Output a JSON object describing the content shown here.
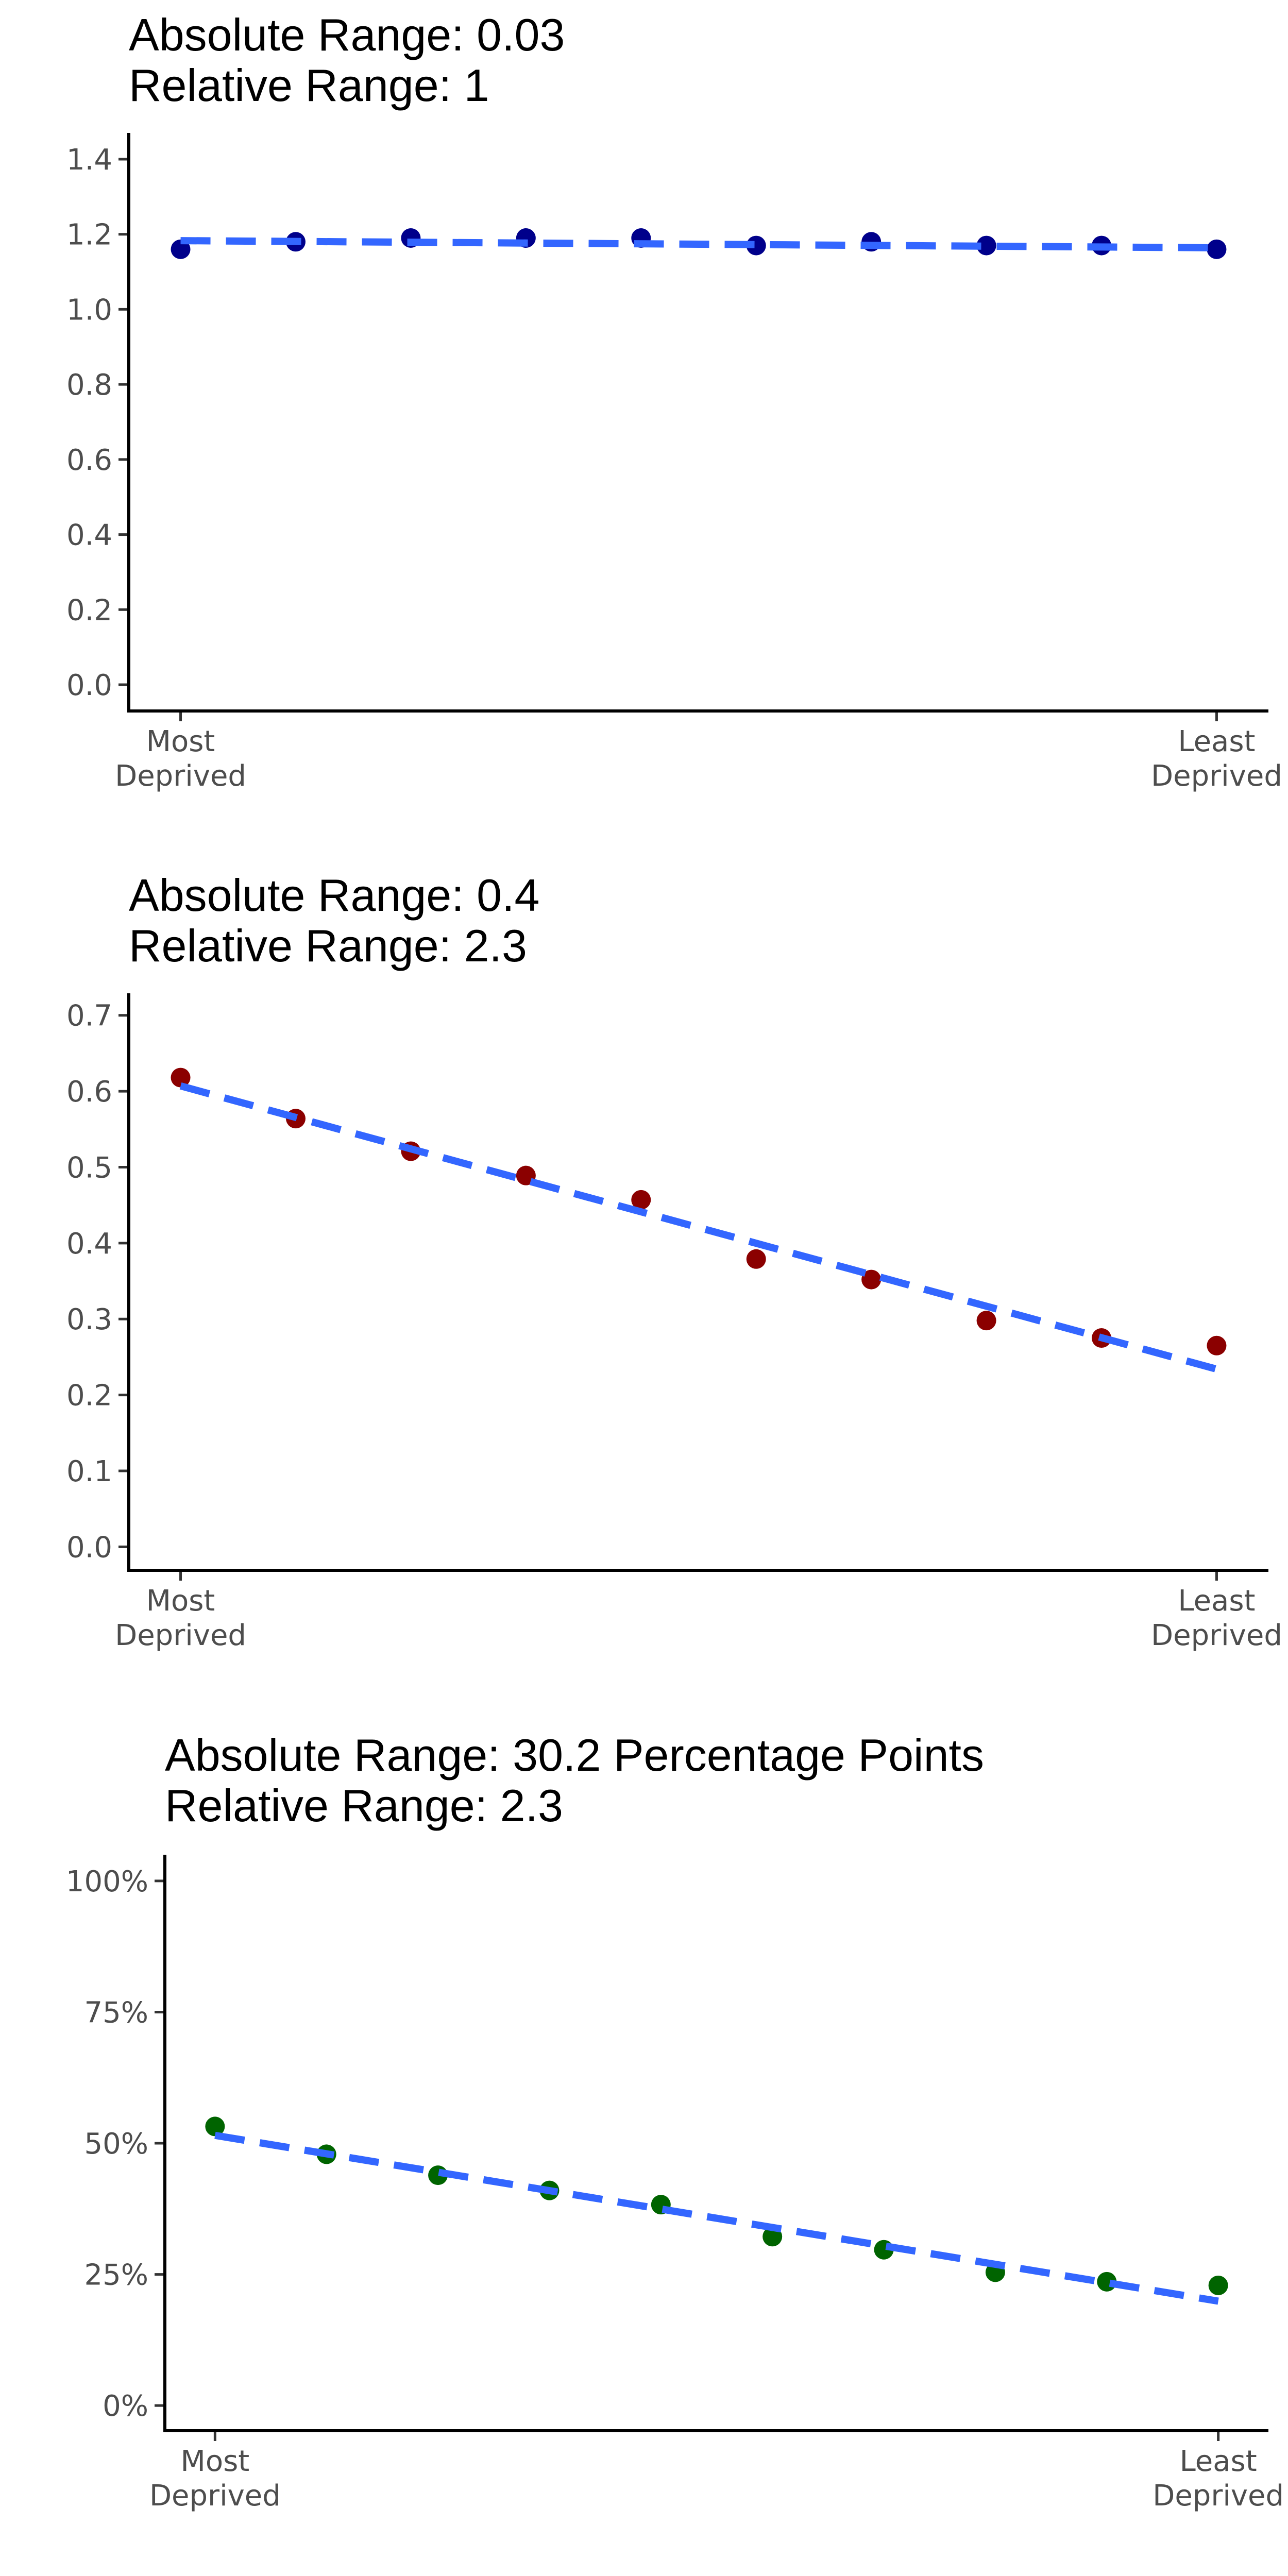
{
  "chart_data": [
    {
      "type": "scatter",
      "title": [
        "Absolute Range: 0.03",
        "Relative Range: 1"
      ],
      "xlabel": "",
      "ylabel": "",
      "x_tick_labels": [
        {
          "x": 1,
          "lines": [
            "Most",
            "Deprived"
          ]
        },
        {
          "x": 10,
          "lines": [
            "Least",
            "Deprived"
          ]
        }
      ],
      "xlim": [
        0.55,
        10.45
      ],
      "ylim": [
        -0.07,
        1.47
      ],
      "y_ticks": [
        0.0,
        0.2,
        0.4,
        0.6,
        0.8,
        1.0,
        1.2,
        1.4
      ],
      "y_tick_labels": [
        "0.0",
        "0.2",
        "0.4",
        "0.6",
        "0.8",
        "1.0",
        "1.2",
        "1.4"
      ],
      "x": [
        1,
        2,
        3,
        4,
        5,
        6,
        7,
        8,
        9,
        10
      ],
      "values": [
        1.16,
        1.18,
        1.19,
        1.19,
        1.19,
        1.17,
        1.18,
        1.17,
        1.17,
        1.16
      ],
      "trend": [
        1.183,
        1.164
      ],
      "point_color": "#00008b",
      "trend_color": "#3366ff",
      "grid": false,
      "legend": "none"
    },
    {
      "type": "scatter",
      "title": [
        "Absolute Range: 0.4",
        "Relative Range: 2.3"
      ],
      "xlabel": "",
      "ylabel": "",
      "x_tick_labels": [
        {
          "x": 1,
          "lines": [
            "Most",
            "Deprived"
          ]
        },
        {
          "x": 10,
          "lines": [
            "Least",
            "Deprived"
          ]
        }
      ],
      "xlim": [
        0.55,
        10.45
      ],
      "ylim": [
        -0.031,
        0.729
      ],
      "y_ticks": [
        0.0,
        0.1,
        0.2,
        0.3,
        0.4,
        0.5,
        0.6,
        0.7
      ],
      "y_tick_labels": [
        "0.0",
        "0.1",
        "0.2",
        "0.3",
        "0.4",
        "0.5",
        "0.6",
        "0.7"
      ],
      "x": [
        1,
        2,
        3,
        4,
        5,
        6,
        7,
        8,
        9,
        10
      ],
      "values": [
        0.618,
        0.564,
        0.521,
        0.489,
        0.457,
        0.379,
        0.352,
        0.298,
        0.275,
        0.265
      ],
      "trend": [
        0.607,
        0.234
      ],
      "point_color": "#8b0000",
      "trend_color": "#3366ff",
      "grid": false,
      "legend": "none"
    },
    {
      "type": "scatter",
      "title": [
        "Absolute Range: 30.2 Percentage Points",
        "Relative Range: 2.3"
      ],
      "xlabel": "",
      "ylabel": "",
      "x_tick_labels": [
        {
          "x": 1,
          "lines": [
            "Most",
            "Deprived"
          ]
        },
        {
          "x": 10,
          "lines": [
            "Least",
            "Deprived"
          ]
        }
      ],
      "xlim": [
        0.55,
        10.45
      ],
      "ylim": [
        -4.8,
        105
      ],
      "y_ticks": [
        0,
        25,
        50,
        75,
        100
      ],
      "y_tick_labels": [
        "0%",
        "25%",
        "50%",
        "75%",
        "100%"
      ],
      "x": [
        1,
        2,
        3,
        4,
        5,
        6,
        7,
        8,
        9,
        10
      ],
      "values": [
        53.2,
        47.9,
        43.9,
        41.0,
        38.3,
        32.2,
        29.7,
        25.4,
        23.6,
        22.9
      ],
      "trend": [
        51.5,
        19.9
      ],
      "point_color": "#006400",
      "trend_color": "#3366ff",
      "grid": false,
      "legend": "none"
    }
  ]
}
